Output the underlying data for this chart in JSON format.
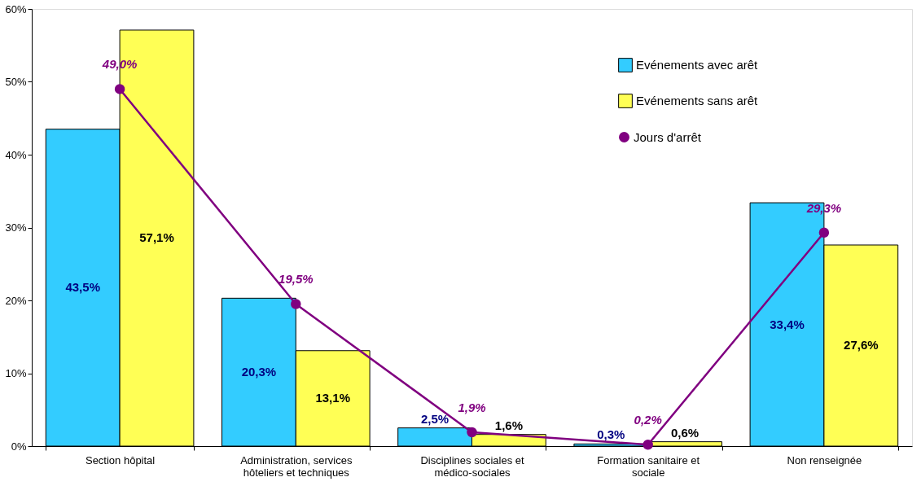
{
  "chart_data": {
    "type": "bar",
    "categories": [
      "Section hôpital",
      "Administration, services hôteliers et techniques",
      "Disciplines sociales et médico-sociales",
      "Formation sanitaire et sociale",
      "Non renseignée"
    ],
    "series": [
      {
        "name": "Evénements avec arêt",
        "color": "#33ccff",
        "values": [
          43.5,
          20.3,
          2.5,
          0.3,
          33.4
        ],
        "value_labels": [
          "43,5%",
          "20,3%",
          "2,5%",
          "0,3%",
          "33,4%"
        ]
      },
      {
        "name": "Evénements sans arêt",
        "color": "#ffff55",
        "values": [
          57.1,
          13.1,
          1.6,
          0.6,
          27.6
        ],
        "value_labels": [
          "57,1%",
          "13,1%",
          "1,6%",
          "0,6%",
          "27,6%"
        ]
      },
      {
        "name": "Jours d'arrêt",
        "type": "line",
        "color": "#800080",
        "values": [
          49.0,
          19.5,
          1.9,
          0.2,
          29.3
        ],
        "value_labels": [
          "49,0%",
          "19,5%",
          "1,9%",
          "0,2%",
          "29,3%"
        ]
      }
    ],
    "ylim": [
      0,
      60
    ],
    "yticks": [
      {
        "value": 0,
        "label": "0%"
      },
      {
        "value": 10,
        "label": "10%"
      },
      {
        "value": 20,
        "label": "20%"
      },
      {
        "value": 30,
        "label": "30%"
      },
      {
        "value": 40,
        "label": "40%"
      },
      {
        "value": 50,
        "label": "50%"
      },
      {
        "value": 60,
        "label": "60%"
      }
    ],
    "marker": "circle",
    "legend": "top right",
    "grid": false
  }
}
